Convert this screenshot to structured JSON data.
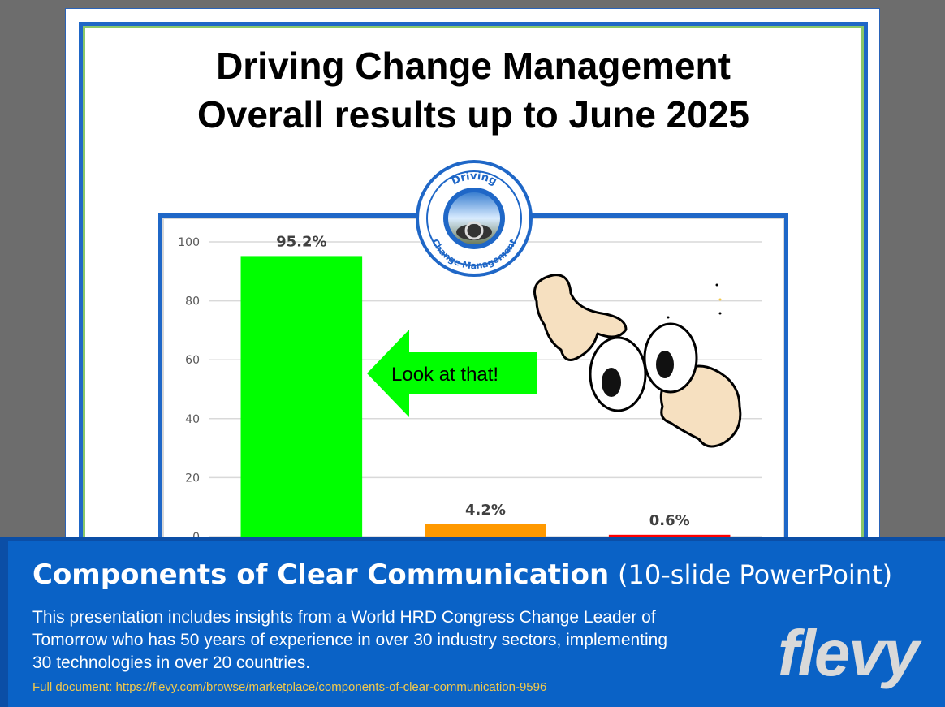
{
  "slide": {
    "title_line1": "Driving Change Management",
    "title_line2": "Overall results up to June 2025",
    "badge_top": "Driving",
    "badge_bottom": "Change Management",
    "callout": "Look at that!"
  },
  "chart_data": {
    "type": "bar",
    "categories": [
      "",
      "",
      ""
    ],
    "values": [
      95.2,
      4.2,
      0.6
    ],
    "data_labels": [
      "95.2%",
      "4.2%",
      "0.6%"
    ],
    "colors": [
      "#00ff00",
      "#ff9900",
      "#ff0000"
    ],
    "ylim": [
      0,
      100
    ],
    "yticks": [
      "0",
      "20",
      "40",
      "60",
      "80",
      "100"
    ],
    "grid": true,
    "title": "",
    "xlabel": "",
    "ylabel": ""
  },
  "footer": {
    "title_bold": "Components of Clear Communication",
    "title_light": "(10-slide PowerPoint)",
    "description": "This presentation includes insights from a World HRD Congress Change Leader of Tomorrow who has 50 years of experience in over 30 industry sectors, implementing 30 technologies in over 20 countries.",
    "link": "Full document: https://flevy.com/browse/marketplace/components-of-clear-communication-9596",
    "logo": "flevy"
  }
}
